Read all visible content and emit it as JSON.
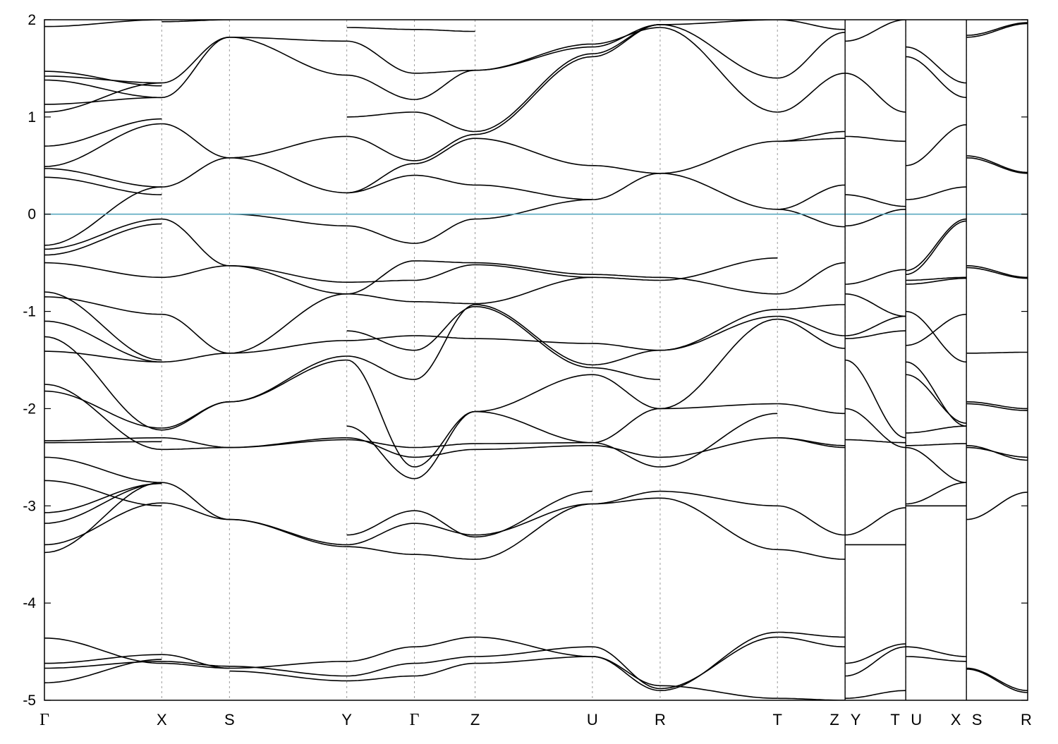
{
  "chart_data": {
    "type": "line",
    "title": "",
    "xlabel": "",
    "ylabel": "",
    "ylim": [
      -5,
      2
    ],
    "yticks": [
      -5,
      -4,
      -3,
      -2,
      -1,
      0,
      1,
      2
    ],
    "ytick_labels": [
      "-5",
      "-4",
      "-3",
      "-2",
      "-1",
      "0",
      "1",
      "2"
    ],
    "grid": "vertical dashed lines at high-symmetry points",
    "fermi_level": {
      "y": 0,
      "color": "#5aa9c0"
    },
    "colors": {
      "bands": "#000000",
      "fermi": "#5aa9c0",
      "grid": "#9a9a9a"
    },
    "x_range": [
      0,
      1
    ],
    "kpoints": [
      {
        "label": "Γ",
        "x": 0.0
      },
      {
        "label": "X",
        "x": 0.1193
      },
      {
        "label": "S",
        "x": 0.1882
      },
      {
        "label": "Y",
        "x": 0.3075
      },
      {
        "label": "Γ",
        "x": 0.3763
      },
      {
        "label": "Z",
        "x": 0.438
      },
      {
        "label": "U",
        "x": 0.5573
      },
      {
        "label": "R",
        "x": 0.6262
      },
      {
        "label": "T",
        "x": 0.7455
      },
      {
        "label": "Z",
        "x": 0.8143
      },
      {
        "label": "Y",
        "x": 0.8143
      },
      {
        "label": "T",
        "x": 0.876
      },
      {
        "label": "U",
        "x": 0.876
      },
      {
        "label": "X",
        "x": 0.9377
      },
      {
        "label": "S",
        "x": 0.9377
      },
      {
        "label": "R",
        "x": 1.0
      }
    ],
    "path_breaks": [
      0.8143,
      0.876,
      0.9377
    ],
    "segments": [
      {
        "from": "Γ",
        "to": "X",
        "x0": 0.0,
        "x1": 0.1193,
        "bands": [
          [
            -4.36,
            -4.62
          ],
          [
            -4.62,
            -4.53
          ],
          [
            -4.67,
            -4.6
          ],
          [
            -4.82,
            -4.58
          ],
          [
            -3.48,
            -2.76
          ],
          [
            -3.4,
            -2.97
          ],
          [
            -3.18,
            -2.77
          ],
          [
            -3.07,
            -2.77
          ],
          [
            -2.74,
            -3.0
          ],
          [
            -2.5,
            -2.76
          ],
          [
            -2.35,
            -2.34
          ],
          [
            -2.33,
            -2.3
          ],
          [
            -1.82,
            -2.2
          ],
          [
            -1.75,
            -2.42
          ],
          [
            -1.41,
            -1.52
          ],
          [
            -1.26,
            -2.22
          ],
          [
            -1.1,
            -1.52
          ],
          [
            -0.85,
            -1.03
          ],
          [
            -0.8,
            -1.5
          ],
          [
            -0.5,
            -0.65
          ],
          [
            -0.42,
            -0.1
          ],
          [
            -0.36,
            -0.05
          ],
          [
            -0.32,
            0.28
          ],
          [
            0.38,
            0.2
          ],
          [
            0.47,
            0.28
          ],
          [
            0.49,
            0.93
          ],
          [
            0.7,
            0.98
          ],
          [
            1.05,
            1.35
          ],
          [
            1.13,
            1.2
          ],
          [
            1.38,
            1.2
          ],
          [
            1.42,
            1.35
          ],
          [
            1.47,
            1.32
          ],
          [
            1.93,
            2.0
          ]
        ]
      },
      {
        "from": "X",
        "to": "S",
        "x0": 0.1193,
        "x1": 0.1882,
        "bands": [
          [
            -4.53,
            -4.67
          ],
          [
            -4.6,
            -4.65
          ],
          [
            -4.62,
            -4.67
          ],
          [
            -2.76,
            -3.14
          ],
          [
            -2.97,
            -3.14
          ],
          [
            -2.3,
            -2.4
          ],
          [
            -2.42,
            -2.4
          ],
          [
            -2.2,
            -1.93
          ],
          [
            -2.22,
            -1.93
          ],
          [
            -1.52,
            -1.43
          ],
          [
            -1.03,
            -1.43
          ],
          [
            -0.65,
            -0.53
          ],
          [
            -0.05,
            -0.53
          ],
          [
            0.28,
            0.58
          ],
          [
            0.93,
            0.58
          ],
          [
            1.2,
            1.82
          ],
          [
            1.35,
            1.82
          ],
          [
            1.98,
            2.0
          ]
        ]
      },
      {
        "from": "S",
        "to": "Y",
        "x0": 0.1882,
        "x1": 0.3075,
        "bands": [
          [
            -4.67,
            -4.6
          ],
          [
            -4.65,
            -4.75
          ],
          [
            -4.7,
            -4.8
          ],
          [
            -3.14,
            -3.42
          ],
          [
            -3.14,
            -3.4
          ],
          [
            -2.4,
            -2.3
          ],
          [
            -2.4,
            -2.32
          ],
          [
            -1.93,
            -1.5
          ],
          [
            -1.93,
            -1.46
          ],
          [
            -1.43,
            -1.3
          ],
          [
            -1.43,
            -0.82
          ],
          [
            -0.53,
            -0.82
          ],
          [
            -0.53,
            -0.7
          ],
          [
            0.58,
            0.8
          ],
          [
            0.58,
            0.22
          ],
          [
            1.82,
            1.78
          ],
          [
            1.82,
            1.43
          ],
          [
            0.0,
            -0.12
          ]
        ]
      },
      {
        "from": "Y",
        "to": "Γ",
        "x0": 0.3075,
        "x1": 0.3763,
        "bands": [
          [
            -4.6,
            -4.45
          ],
          [
            -4.75,
            -4.62
          ],
          [
            -4.8,
            -4.75
          ],
          [
            -3.42,
            -3.5
          ],
          [
            -3.4,
            -3.18
          ],
          [
            -3.3,
            -3.05
          ],
          [
            -2.3,
            -2.5
          ],
          [
            -2.32,
            -2.4
          ],
          [
            -2.18,
            -2.72
          ],
          [
            -1.5,
            -2.6
          ],
          [
            -1.46,
            -1.7
          ],
          [
            -1.3,
            -1.25
          ],
          [
            -1.2,
            -1.4
          ],
          [
            -0.82,
            -0.48
          ],
          [
            -0.82,
            -0.9
          ],
          [
            -0.7,
            -0.68
          ],
          [
            -0.12,
            -0.3
          ],
          [
            0.22,
            0.4
          ],
          [
            0.22,
            0.52
          ],
          [
            0.8,
            0.55
          ],
          [
            1.0,
            1.05
          ],
          [
            1.43,
            1.18
          ],
          [
            1.78,
            1.45
          ],
          [
            1.92,
            1.9
          ]
        ]
      },
      {
        "from": "Γ",
        "to": "Z",
        "x0": 0.3763,
        "x1": 0.438,
        "bands": [
          [
            -4.45,
            -4.35
          ],
          [
            -4.62,
            -4.55
          ],
          [
            -4.75,
            -4.62
          ],
          [
            -3.5,
            -3.55
          ],
          [
            -3.18,
            -3.3
          ],
          [
            -3.05,
            -3.32
          ],
          [
            -2.5,
            -2.42
          ],
          [
            -2.4,
            -2.36
          ],
          [
            -2.72,
            -2.03
          ],
          [
            -2.6,
            -2.03
          ],
          [
            -1.7,
            -0.93
          ],
          [
            -1.25,
            -1.28
          ],
          [
            -1.4,
            -0.95
          ],
          [
            -0.48,
            -0.5
          ],
          [
            -0.9,
            -0.92
          ],
          [
            -0.68,
            -0.52
          ],
          [
            -0.3,
            -0.05
          ],
          [
            0.4,
            0.3
          ],
          [
            0.52,
            0.78
          ],
          [
            0.55,
            0.82
          ],
          [
            1.05,
            0.85
          ],
          [
            1.18,
            1.48
          ],
          [
            1.45,
            1.48
          ],
          [
            1.9,
            1.88
          ]
        ]
      },
      {
        "from": "Z",
        "to": "U",
        "x0": 0.438,
        "x1": 0.5573,
        "bands": [
          [
            -4.35,
            -4.55
          ],
          [
            -4.55,
            -4.45
          ],
          [
            -4.62,
            -4.55
          ],
          [
            -3.55,
            -2.98
          ],
          [
            -3.3,
            -2.98
          ],
          [
            -3.32,
            -2.85
          ],
          [
            -2.42,
            -2.38
          ],
          [
            -2.36,
            -2.35
          ],
          [
            -2.03,
            -2.35
          ],
          [
            -2.03,
            -1.65
          ],
          [
            -0.93,
            -1.55
          ],
          [
            -1.28,
            -1.33
          ],
          [
            -0.95,
            -1.58
          ],
          [
            -0.5,
            -0.62
          ],
          [
            -0.92,
            -0.65
          ],
          [
            -0.52,
            -0.65
          ],
          [
            -0.05,
            0.15
          ],
          [
            0.3,
            0.15
          ],
          [
            0.78,
            0.5
          ],
          [
            0.82,
            1.62
          ],
          [
            0.85,
            1.65
          ],
          [
            1.48,
            1.72
          ],
          [
            1.48,
            1.75
          ]
        ]
      },
      {
        "from": "U",
        "to": "R",
        "x0": 0.5573,
        "x1": 0.6262,
        "bands": [
          [
            -4.55,
            -4.9
          ],
          [
            -4.45,
            -4.88
          ],
          [
            -4.55,
            -4.85
          ],
          [
            -2.98,
            -2.92
          ],
          [
            -2.98,
            -2.85
          ],
          [
            -2.38,
            -2.5
          ],
          [
            -2.35,
            -2.6
          ],
          [
            -2.35,
            -2.0
          ],
          [
            -1.65,
            -2.0
          ],
          [
            -1.55,
            -1.4
          ],
          [
            -1.33,
            -1.4
          ],
          [
            -1.58,
            -1.7
          ],
          [
            -0.62,
            -0.65
          ],
          [
            -0.65,
            -0.68
          ],
          [
            0.15,
            0.42
          ],
          [
            0.5,
            0.42
          ],
          [
            1.62,
            1.95
          ],
          [
            1.65,
            1.95
          ],
          [
            1.72,
            1.95
          ],
          [
            1.75,
            1.92
          ]
        ]
      },
      {
        "from": "R",
        "to": "T",
        "x0": 0.6262,
        "x1": 0.7455,
        "bands": [
          [
            -4.9,
            -4.3
          ],
          [
            -4.88,
            -4.35
          ],
          [
            -4.85,
            -4.98
          ],
          [
            -2.92,
            -3.45
          ],
          [
            -2.85,
            -3.0
          ],
          [
            -2.5,
            -2.3
          ],
          [
            -2.6,
            -2.05
          ],
          [
            -2.0,
            -1.95
          ],
          [
            -2.0,
            -1.08
          ],
          [
            -1.4,
            -0.98
          ],
          [
            -1.4,
            -1.05
          ],
          [
            -0.65,
            -0.82
          ],
          [
            -0.68,
            -0.45
          ],
          [
            0.42,
            0.05
          ],
          [
            0.42,
            0.75
          ],
          [
            1.95,
            1.4
          ],
          [
            1.95,
            2.0
          ],
          [
            1.92,
            1.05
          ]
        ]
      },
      {
        "from": "T",
        "to": "Z",
        "x0": 0.7455,
        "x1": 0.8143,
        "bands": [
          [
            -4.3,
            -4.35
          ],
          [
            -4.35,
            -4.45
          ],
          [
            -4.98,
            -5.0
          ],
          [
            -3.45,
            -3.55
          ],
          [
            -3.0,
            -3.3
          ],
          [
            -2.3,
            -2.4
          ],
          [
            -2.3,
            -2.38
          ],
          [
            -1.95,
            -2.05
          ],
          [
            -1.08,
            -1.38
          ],
          [
            -0.98,
            -0.93
          ],
          [
            -1.05,
            -1.25
          ],
          [
            -0.82,
            -0.5
          ],
          [
            0.05,
            -0.13
          ],
          [
            0.05,
            0.3
          ],
          [
            0.75,
            0.85
          ],
          [
            0.75,
            0.78
          ],
          [
            1.4,
            1.87
          ],
          [
            1.05,
            1.45
          ],
          [
            2.0,
            1.9
          ]
        ]
      },
      {
        "from": "Y",
        "to": "T",
        "x0": 0.8143,
        "x1": 0.876,
        "bands": [
          [
            -4.62,
            -4.42
          ],
          [
            -4.75,
            -4.45
          ],
          [
            -4.98,
            -4.9
          ],
          [
            -3.4,
            -3.4
          ],
          [
            -3.3,
            -3.02
          ],
          [
            -2.32,
            -2.35
          ],
          [
            -2.0,
            -2.4
          ],
          [
            -1.5,
            -2.3
          ],
          [
            -1.25,
            -1.05
          ],
          [
            -1.28,
            -1.2
          ],
          [
            -0.82,
            -1.05
          ],
          [
            -0.72,
            -0.57
          ],
          [
            -0.12,
            0.05
          ],
          [
            0.2,
            0.08
          ],
          [
            0.8,
            0.75
          ],
          [
            1.45,
            1.05
          ],
          [
            1.78,
            2.0
          ]
        ]
      },
      {
        "from": "U",
        "to": "X",
        "x0": 0.876,
        "x1": 0.9377,
        "bands": [
          [
            -4.45,
            -4.55
          ],
          [
            -4.55,
            -4.6
          ],
          [
            -2.98,
            -2.76
          ],
          [
            -3.0,
            -3.0
          ],
          [
            -2.38,
            -2.36
          ],
          [
            -2.4,
            -2.76
          ],
          [
            -1.65,
            -2.15
          ],
          [
            -1.52,
            -2.18
          ],
          [
            -2.25,
            -2.18
          ],
          [
            -1.35,
            -1.03
          ],
          [
            -1.0,
            -1.52
          ],
          [
            -0.68,
            -0.65
          ],
          [
            -0.72,
            -0.66
          ],
          [
            -0.62,
            -0.07
          ],
          [
            -0.58,
            -0.05
          ],
          [
            0.15,
            0.28
          ],
          [
            0.5,
            0.92
          ],
          [
            1.62,
            1.2
          ],
          [
            1.72,
            1.35
          ]
        ]
      },
      {
        "from": "S",
        "to": "R",
        "x0": 0.9377,
        "x1": 1.0,
        "bands": [
          [
            -4.67,
            -4.9
          ],
          [
            -4.68,
            -4.92
          ],
          [
            -3.14,
            -2.86
          ],
          [
            -2.4,
            -2.5
          ],
          [
            -2.38,
            -2.53
          ],
          [
            -1.93,
            -2.0
          ],
          [
            -1.95,
            -2.02
          ],
          [
            -1.43,
            -1.42
          ],
          [
            -0.53,
            -0.65
          ],
          [
            -0.55,
            -0.66
          ],
          [
            0.58,
            0.42
          ],
          [
            0.6,
            0.43
          ],
          [
            1.82,
            1.96
          ],
          [
            1.84,
            1.97
          ]
        ]
      }
    ]
  }
}
